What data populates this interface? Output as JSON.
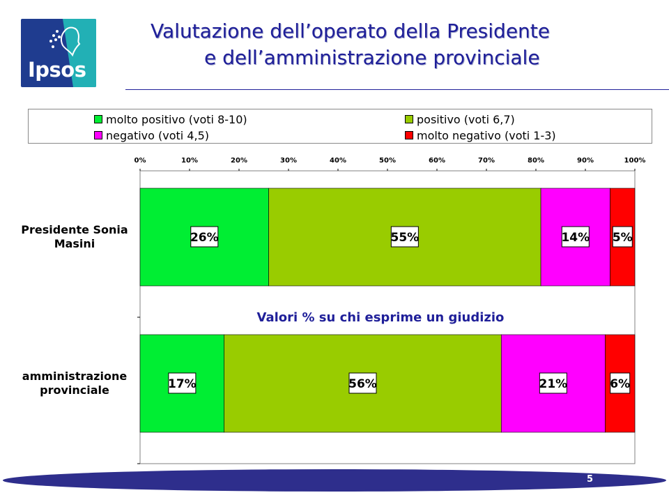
{
  "header": {
    "logo_text": "Ipsos",
    "title_line1": "Valutazione dell’operato della Presidente",
    "title_line2": "e dell’amministrazione provinciale"
  },
  "colors": {
    "molto_positivo": "#00ee33",
    "positivo": "#99cc00",
    "negativo": "#ff00ff",
    "molto_negativo": "#ff0000",
    "title": "#1f1f99",
    "footer": "#2e2e8c"
  },
  "chart_data": {
    "type": "bar",
    "orientation": "horizontal",
    "stacked": true,
    "categories": [
      "Presidente Sonia Masini",
      "amministrazione provinciale"
    ],
    "series": [
      {
        "name": "molto positivo (voti 8-10)",
        "values": [
          26,
          17
        ],
        "labels": [
          "26%",
          "17%"
        ]
      },
      {
        "name": "positivo (voti 6,7)",
        "values": [
          55,
          56
        ],
        "labels": [
          "55%",
          "56%"
        ]
      },
      {
        "name": "negativo (voti 4,5)",
        "values": [
          14,
          21
        ],
        "labels": [
          "14%",
          "21%"
        ]
      },
      {
        "name": "molto negativo (voti 1-3)",
        "values": [
          5,
          6
        ],
        "labels": [
          "5%",
          "6%"
        ]
      }
    ],
    "xlim": [
      0,
      100
    ],
    "xticks": [
      "0%",
      "10%",
      "20%",
      "30%",
      "40%",
      "50%",
      "60%",
      "70%",
      "80%",
      "90%",
      "100%"
    ],
    "legend_position": "top",
    "grid": false,
    "annotation": "Valori % su chi esprime un giudizio"
  },
  "footer": {
    "page_number": "5"
  }
}
